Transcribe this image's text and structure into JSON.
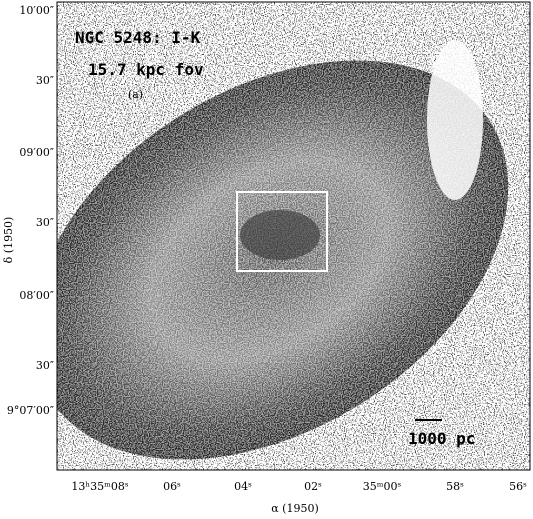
{
  "figure": {
    "title": "NGC 5248: I-K",
    "subtitle": "15.7 kpc fov",
    "panel": "(a)",
    "scale_bar": "1000 pc",
    "x_axis_label": "α (1950)",
    "y_axis_label": "δ (1950)",
    "x_tick_labels": [
      "13ʰ35ᵐ08ˢ",
      "06ˢ",
      "04ˢ",
      "02ˢ",
      "35ᵐ00ˢ",
      "58ˢ",
      "56ˢ"
    ],
    "y_tick_labels": [
      "10′00″",
      "30″",
      "09′00″",
      "30″",
      "08′00″",
      "30″",
      "9°07′00″"
    ]
  }
}
